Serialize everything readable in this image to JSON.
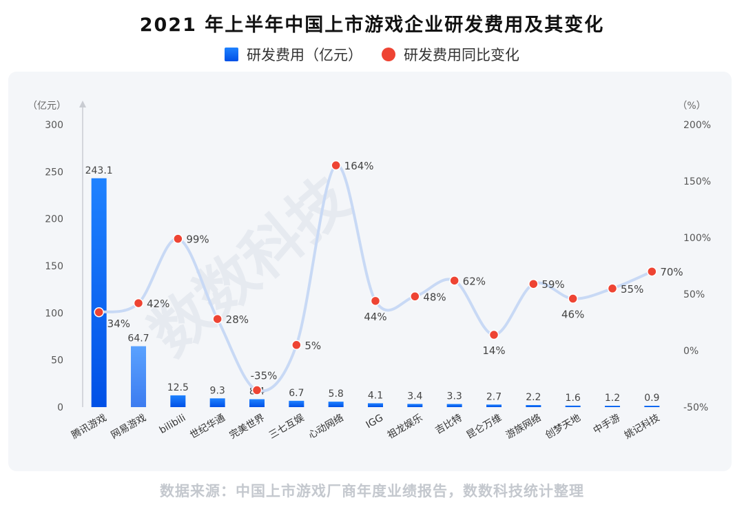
{
  "title": "2021 年上半年中国上市游戏企业研发费用及其变化",
  "legend": {
    "bar_label": "研发费用（亿元）",
    "dot_label": "研发费用同比变化"
  },
  "source": "数据来源：中国上市游戏厂商年度业绩报告，数数科技统计整理",
  "watermark": "数数科技",
  "colors": {
    "bar_top": "#1f82ff",
    "bar_bottom": "#0050e6",
    "bar_light": "#5aa2ff",
    "dot": "#ee4433",
    "line": "#c8d9f5",
    "panel": "#f4f6f9"
  },
  "chart_data": {
    "type": "bar",
    "categories": [
      "腾讯游戏",
      "网易游戏",
      "bilibili",
      "世纪华通",
      "完美世界",
      "三七互娱",
      "心动网络",
      "IGG",
      "祖龙娱乐",
      "吉比特",
      "昆仑万维",
      "游族网络",
      "创梦天地",
      "中手游",
      "姚记科技"
    ],
    "series": [
      {
        "name": "研发费用（亿元）",
        "axis": "left",
        "values": [
          243.1,
          64.7,
          12.5,
          9.3,
          8.4,
          6.7,
          5.8,
          4.1,
          3.4,
          3.3,
          2.7,
          2.2,
          1.6,
          1.2,
          0.9
        ],
        "labels": [
          "243.1",
          "64.7",
          "12.5",
          "9.3",
          "8.4",
          "6.7",
          "5.8",
          "4.1",
          "3.4",
          "3.3",
          "2.7",
          "2.2",
          "1.6",
          "1.2",
          "0.9"
        ]
      },
      {
        "name": "研发费用同比变化",
        "axis": "right",
        "type": "line",
        "values": [
          34,
          42,
          99,
          28,
          -35,
          5,
          164,
          44,
          48,
          62,
          14,
          59,
          46,
          55,
          70
        ],
        "labels": [
          "34%",
          "42%",
          "99%",
          "28%",
          "-35%",
          "5%",
          "164%",
          "44%",
          "48%",
          "62%",
          "14%",
          "59%",
          "46%",
          "55%",
          "70%"
        ]
      }
    ],
    "y_left": {
      "unit": "（亿元）",
      "ylim": [
        0,
        300
      ],
      "ticks": [
        "0",
        "50",
        "100",
        "150",
        "200",
        "250",
        "300"
      ]
    },
    "y_right": {
      "unit": "（%）",
      "ylim": [
        -50,
        200
      ],
      "ticks": [
        "-50%",
        "0%",
        "50%",
        "100%",
        "150%",
        "200%"
      ]
    },
    "grid": false,
    "legend_position": "top"
  }
}
